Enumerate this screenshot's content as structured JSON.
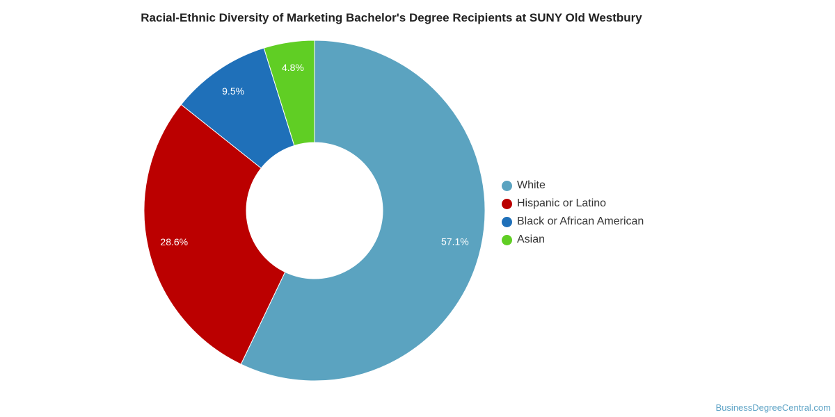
{
  "chart_data": {
    "type": "pie",
    "title": "Racial-Ethnic Diversity of Marketing Bachelor's Degree Recipients at SUNY Old Westbury",
    "categories": [
      "White",
      "Hispanic or Latino",
      "Black or African American",
      "Asian"
    ],
    "values": [
      57.1,
      28.6,
      9.5,
      4.8
    ],
    "data_labels": [
      "57.1%",
      "28.6%",
      "9.5%",
      "4.8%"
    ],
    "colors": [
      "#5ba3c0",
      "#bb0000",
      "#1f70b9",
      "#60ce24"
    ],
    "donut": true,
    "legend_position": "right"
  },
  "footer": {
    "credit": "BusinessDegreeCentral.com"
  }
}
